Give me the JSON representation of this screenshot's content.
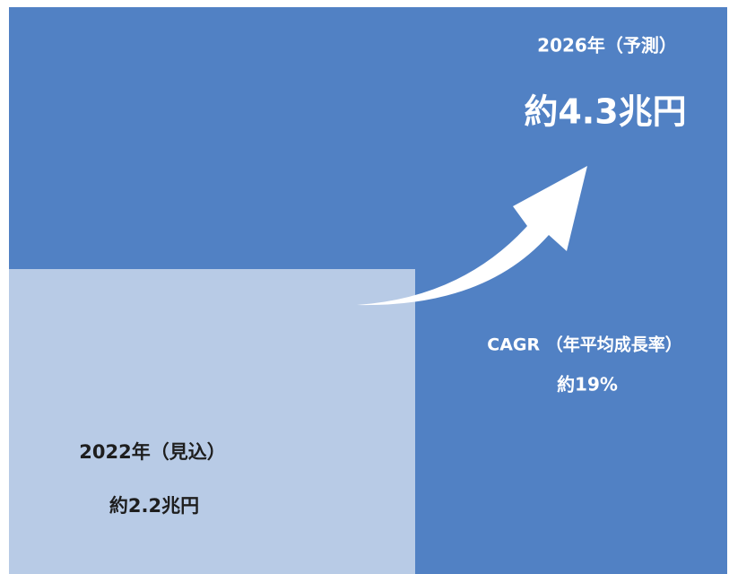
{
  "forecast": {
    "label": "2026年（予測）",
    "value": "約4.3兆円"
  },
  "cagr": {
    "label": "CAGR （年平均成長率）",
    "value": "約19%"
  },
  "estimate": {
    "label": "2022年（見込）",
    "value": "約2.2兆円"
  }
}
